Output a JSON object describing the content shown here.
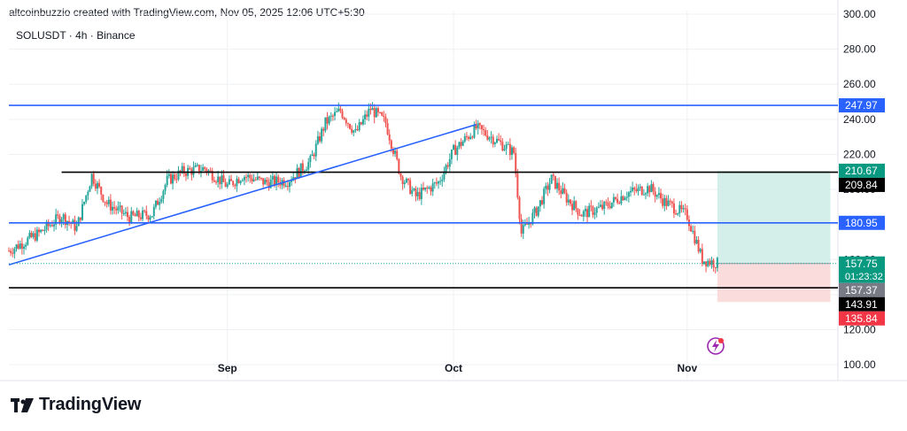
{
  "header": {
    "attribution": "altcoinbuzzio created with TradingView.com, Nov 05, 2025 12:06 UTC+5:30",
    "symbol_line": "SOLUSDT · 4h · Binance"
  },
  "footer": {
    "brand": "TradingView"
  },
  "colors": {
    "up": "#26a69a",
    "down": "#ef5350",
    "blue_line": "#2962ff",
    "black_line": "#000000",
    "target_zone": "#d4efe9",
    "stop_zone": "#fbdcdc",
    "grid": "#eef0f3",
    "axis_text": "#131722"
  },
  "chart_data": {
    "type": "candlestick",
    "symbol": "SOLUSDT",
    "interval": "4h",
    "exchange": "Binance",
    "y_ticks": [
      "300.00",
      "280.00",
      "260.00",
      "240.00",
      "220.00",
      "200.00",
      "180.00",
      "160.00",
      "140.00",
      "120.00",
      "100.00"
    ],
    "y_tick_values": [
      300,
      280,
      260,
      240,
      220,
      200,
      180,
      160,
      140,
      120,
      100
    ],
    "x_ticks": [
      {
        "label": "Sep",
        "date": "2025-09-01"
      },
      {
        "label": "Oct",
        "date": "2025-10-01"
      },
      {
        "label": "Nov",
        "date": "2025-11-01"
      }
    ],
    "x_range": [
      "2025-08-03",
      "2025-11-21"
    ],
    "ylim": [
      92,
      302
    ],
    "price_path": [
      [
        "2025-08-03",
        165
      ],
      [
        "2025-08-07",
        175
      ],
      [
        "2025-08-10",
        185
      ],
      [
        "2025-08-12",
        178
      ],
      [
        "2025-08-14",
        208
      ],
      [
        "2025-08-16",
        192
      ],
      [
        "2025-08-19",
        184
      ],
      [
        "2025-08-22",
        186
      ],
      [
        "2025-08-24",
        205
      ],
      [
        "2025-08-26",
        210
      ],
      [
        "2025-08-29",
        212
      ],
      [
        "2025-09-01",
        202
      ],
      [
        "2025-09-03",
        208
      ],
      [
        "2025-09-06",
        204
      ],
      [
        "2025-09-09",
        205
      ],
      [
        "2025-09-12",
        216
      ],
      [
        "2025-09-14",
        238
      ],
      [
        "2025-09-16",
        245
      ],
      [
        "2025-09-18",
        232
      ],
      [
        "2025-09-20",
        246
      ],
      [
        "2025-09-22",
        238
      ],
      [
        "2025-09-24",
        208
      ],
      [
        "2025-09-26",
        196
      ],
      [
        "2025-09-29",
        204
      ],
      [
        "2025-10-01",
        222
      ],
      [
        "2025-10-04",
        235
      ],
      [
        "2025-10-06",
        230
      ],
      [
        "2025-10-09",
        221
      ],
      [
        "2025-10-10",
        175
      ],
      [
        "2025-10-12",
        188
      ],
      [
        "2025-10-14",
        206
      ],
      [
        "2025-10-16",
        195
      ],
      [
        "2025-10-18",
        186
      ],
      [
        "2025-10-21",
        190
      ],
      [
        "2025-10-24",
        198
      ],
      [
        "2025-10-27",
        201
      ],
      [
        "2025-10-29",
        193
      ],
      [
        "2025-11-01",
        185
      ],
      [
        "2025-11-03",
        160
      ],
      [
        "2025-11-05",
        157.75
      ]
    ],
    "horizontal_lines": [
      {
        "price": 247.97,
        "label": "247.97",
        "color": "blue",
        "from": "2025-08-03"
      },
      {
        "price": 209.84,
        "label": "209.84",
        "color": "black",
        "from": "2025-08-10"
      },
      {
        "price": 180.95,
        "label": "180.95",
        "color": "blue",
        "from": "2025-08-03"
      },
      {
        "price": 143.91,
        "label": "143.91",
        "color": "black",
        "from": "2025-08-03"
      }
    ],
    "trendline": {
      "from": [
        "2025-08-03",
        157
      ],
      "to": [
        "2025-10-04",
        237
      ]
    },
    "position": {
      "type": "long",
      "entry": 157.75,
      "target": 210.67,
      "stop": 135.84,
      "from": "2025-11-05",
      "to": "2025-11-20"
    },
    "price_labels": [
      {
        "text": "210.67",
        "price": 210.67,
        "style": "green"
      },
      {
        "text": "209.84",
        "price": 209.84,
        "style": "black"
      },
      {
        "text": "157.75",
        "price": 157.75,
        "style": "green",
        "sub": "01:23:32"
      },
      {
        "text": "157.37",
        "price": 154.3,
        "style": "gray"
      },
      {
        "text": "143.91",
        "price": 143.91,
        "style": "black"
      },
      {
        "text": "135.84",
        "price": 135.84,
        "style": "red"
      }
    ],
    "last_price": 157.75,
    "countdown": "01:23:32"
  }
}
